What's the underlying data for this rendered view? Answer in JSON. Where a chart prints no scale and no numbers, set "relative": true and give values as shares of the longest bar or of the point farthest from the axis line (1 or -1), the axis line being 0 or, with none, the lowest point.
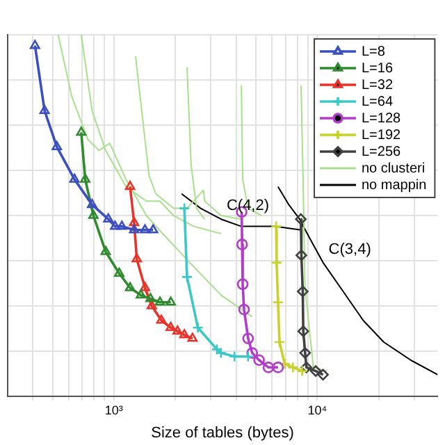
{
  "chart_data": {
    "type": "line",
    "xlabel": "Size of tables (bytes)",
    "log": "x",
    "relative": true,
    "grid": true,
    "legend": "top right",
    "line_style": "solid",
    "xlim": [
      300,
      39000
    ],
    "xticks": [
      {
        "value": 400,
        "label": null
      },
      {
        "value": 500,
        "label": null
      },
      {
        "value": 600,
        "label": null
      },
      {
        "value": 700,
        "label": null
      },
      {
        "value": 800,
        "label": null
      },
      {
        "value": 900,
        "label": null
      },
      {
        "value": 1000,
        "label": "10³"
      },
      {
        "value": 2000,
        "label": null
      },
      {
        "value": 3000,
        "label": null
      },
      {
        "value": 4000,
        "label": null
      },
      {
        "value": 5000,
        "label": null
      },
      {
        "value": 6000,
        "label": null
      },
      {
        "value": 7000,
        "label": null
      },
      {
        "value": 8000,
        "label": null
      },
      {
        "value": 9000,
        "label": null
      },
      {
        "value": 10000,
        "label": "10⁴"
      },
      {
        "value": 20000,
        "label": null
      },
      {
        "value": 30000,
        "label": null
      }
    ],
    "annotations": [
      {
        "text": "C(4,2)",
        "x": 3365,
        "y": 0.49
      },
      {
        "text": "C(3,4)",
        "x": 10666,
        "y": 0.37
      }
    ],
    "series": [
      {
        "name": "L=8",
        "color": "#3b4fc0",
        "marker": "triangle",
        "x": [
          410,
          457,
          525,
          641,
          782,
          940,
          1015,
          1096,
          1259,
          1423,
          1560
        ],
        "values": [
          0.97,
          0.79,
          0.69,
          0.6,
          0.53,
          0.49,
          0.47,
          0.47,
          0.46,
          0.46,
          0.46
        ]
      },
      {
        "name": "L=16",
        "color": "#2e8b2e",
        "marker": "triangle",
        "x": [
          692,
          724,
          794,
          912,
          1063,
          1202,
          1359,
          1514,
          1686,
          1905
        ],
        "values": [
          0.73,
          0.6,
          0.5,
          0.4,
          0.34,
          0.3,
          0.28,
          0.27,
          0.26,
          0.26
        ]
      },
      {
        "name": "L=32",
        "color": "#e8322a",
        "marker": "triangle",
        "x": [
          1202,
          1259,
          1297,
          1423,
          1537,
          1712,
          1905,
          2056,
          2222,
          2436
        ],
        "values": [
          0.58,
          0.48,
          0.38,
          0.3,
          0.25,
          0.21,
          0.19,
          0.18,
          0.17,
          0.16
        ]
      },
      {
        "name": "L=64",
        "color": "#3cc8c8",
        "marker": "cross",
        "x": [
          2222,
          2290,
          2588,
          3210,
          3365,
          3917,
          4571
        ],
        "values": [
          0.52,
          0.33,
          0.19,
          0.13,
          0.12,
          0.11,
          0.11
        ]
      },
      {
        "name": "L=128",
        "color": "#b03cc8",
        "marker": "circle",
        "x": [
          4250,
          4270,
          4298,
          4365,
          4571,
          4786,
          5176,
          5752,
          6412
        ],
        "values": [
          0.51,
          0.42,
          0.31,
          0.24,
          0.16,
          0.12,
          0.1,
          0.08,
          0.08
        ]
      },
      {
        "name": "L=192",
        "color": "#c8d22a",
        "marker": "cross",
        "x": [
          6280,
          6310,
          6412,
          6516,
          6918,
          7586,
          8433
        ],
        "values": [
          0.47,
          0.37,
          0.26,
          0.15,
          0.09,
          0.08,
          0.07
        ]
      },
      {
        "name": "L=256",
        "color": "#404040",
        "marker": "diamond",
        "x": [
          8300,
          8350,
          8480,
          8530,
          8710,
          8841,
          9817,
          10666
        ],
        "values": [
          0.49,
          0.39,
          0.29,
          0.18,
          0.12,
          0.08,
          0.07,
          0.06
        ]
      },
      {
        "name": "no clusteri",
        "color": "#a8e08c",
        "marker": "none",
        "x": [
          533,
          621,
          747,
          845,
          955,
          1148,
          1445,
          1738,
          2362,
          3365,
          4786,
          null,
          692,
          782,
          912,
          1148,
          1445,
          1686,
          1965,
          2474,
          3365,
          null,
          1279,
          1491,
          1610,
          1965,
          2290,
          2754,
          2797,
          3365,
          4233,
          null,
          2290,
          2398,
          2552,
          2797,
          null,
          4233,
          4298,
          4571,
          5321,
          null,
          8318,
          8511,
          8700,
          9404,
          9549,
          11143
        ],
        "values": [
          1,
          0.83,
          0.71,
          0.68,
          0.7,
          0.6,
          0.5,
          0.45,
          0.37,
          0.28,
          0.22,
          null,
          1,
          0.79,
          0.68,
          0.58,
          0.54,
          0.54,
          0.5,
          0.47,
          0.45,
          null,
          0.94,
          0.61,
          0.56,
          0.52,
          0.52,
          0.57,
          0.54,
          0.5,
          0.49,
          null,
          0.91,
          0.64,
          0.52,
          0.49,
          null,
          0.86,
          0.6,
          0.52,
          0.5,
          null,
          0.86,
          0.6,
          0.3,
          0.12,
          0.08,
          0.07
        ]
      },
      {
        "name": "no mappin",
        "color": "#000000",
        "marker": "none",
        "x": [
          2154,
          2671,
          3365,
          4233,
          6202,
          8318,
          null,
          6412,
          7244,
          8185,
          9120,
          10666,
          13400,
          16800,
          21200,
          28800,
          39000
        ],
        "values": [
          0.56,
          0.52,
          0.49,
          0.47,
          0.47,
          0.46,
          null,
          0.58,
          0.53,
          0.49,
          0.44,
          0.37,
          0.29,
          0.21,
          0.15,
          0.1,
          0.06
        ]
      }
    ]
  }
}
